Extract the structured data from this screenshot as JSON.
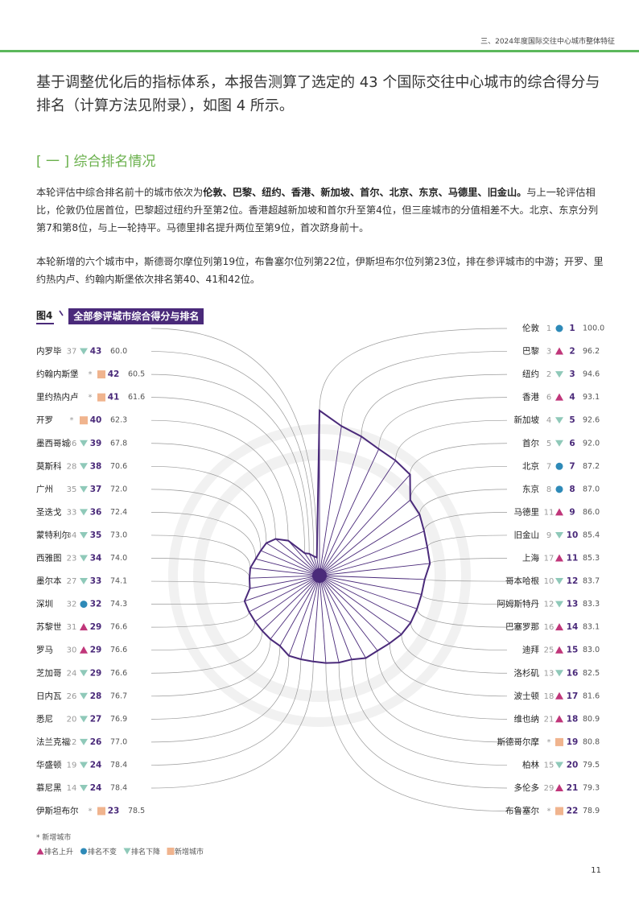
{
  "header": {
    "section_title": "三、2024年度国际交往中心城市整体特征"
  },
  "intro": {
    "text": "基于调整优化后的指标体系，本报告测算了选定的 43 个国际交往中心城市的综合得分与排名（计算方法见附录），如图 4 所示。"
  },
  "section": {
    "heading": "[ 一 ]  综合排名情况"
  },
  "paragraph1": {
    "before": "本轮评估中综合排名前十的城市依次为",
    "bold": "伦敦、巴黎、纽约、香港、新加坡、首尔、北京、东京、马德里、旧金山。",
    "after": "与上一轮评估相比，伦敦仍位居首位，巴黎超过纽约升至第2位。香港超越新加坡和首尔升至第4位，但三座城市的分值相差不大。北京、东京分列第7和第8位，与上一轮持平。马德里排名提升两位至第9位，首次跻身前十。"
  },
  "paragraph2": {
    "text": "本轮新增的六个城市中，斯德哥尔摩位列第19位，布鲁塞尔位列第22位，伊斯坦布尔位列第23位，排在参评城市的中游；开罗、里约热内卢、约翰内斯堡依次排名第40、41和42位。"
  },
  "figure": {
    "number": "图4",
    "title": "全部参评城市综合得分与排名"
  },
  "colors": {
    "accent": "#4a2a7a",
    "green": "#6ab04c",
    "up": "#c0367a",
    "same": "#2e8ab8",
    "down": "#8fc9b9",
    "new": "#f0b48e",
    "ring": "#f1f1f1"
  },
  "chart_data": {
    "type": "radial",
    "ylim": [
      55,
      100
    ],
    "cities": [
      {
        "name": "伦敦",
        "prev": "1",
        "status": "same",
        "rank": "1",
        "score": "100.0",
        "side": "right"
      },
      {
        "name": "巴黎",
        "prev": "3",
        "status": "up",
        "rank": "2",
        "score": "96.2",
        "side": "right"
      },
      {
        "name": "纽约",
        "prev": "2",
        "status": "down",
        "rank": "3",
        "score": "94.6",
        "side": "right"
      },
      {
        "name": "香港",
        "prev": "6",
        "status": "up",
        "rank": "4",
        "score": "93.1",
        "side": "right"
      },
      {
        "name": "新加坡",
        "prev": "4",
        "status": "down",
        "rank": "5",
        "score": "92.6",
        "side": "right"
      },
      {
        "name": "首尔",
        "prev": "5",
        "status": "down",
        "rank": "6",
        "score": "92.0",
        "side": "right"
      },
      {
        "name": "北京",
        "prev": "7",
        "status": "same",
        "rank": "7",
        "score": "87.2",
        "side": "right"
      },
      {
        "name": "东京",
        "prev": "8",
        "status": "same",
        "rank": "8",
        "score": "87.0",
        "side": "right"
      },
      {
        "name": "马德里",
        "prev": "11",
        "status": "up",
        "rank": "9",
        "score": "86.0",
        "side": "right"
      },
      {
        "name": "旧金山",
        "prev": "9",
        "status": "down",
        "rank": "10",
        "score": "85.4",
        "side": "right"
      },
      {
        "name": "上海",
        "prev": "17",
        "status": "up",
        "rank": "11",
        "score": "85.3",
        "side": "right"
      },
      {
        "name": "哥本哈根",
        "prev": "10",
        "status": "down",
        "rank": "12",
        "score": "83.7",
        "side": "right"
      },
      {
        "name": "阿姆斯特丹",
        "prev": "12",
        "status": "down",
        "rank": "13",
        "score": "83.3",
        "side": "right"
      },
      {
        "name": "巴塞罗那",
        "prev": "16",
        "status": "up",
        "rank": "14",
        "score": "83.1",
        "side": "right"
      },
      {
        "name": "迪拜",
        "prev": "25",
        "status": "up",
        "rank": "15",
        "score": "83.0",
        "side": "right"
      },
      {
        "name": "洛杉矶",
        "prev": "13",
        "status": "down",
        "rank": "16",
        "score": "82.5",
        "side": "right"
      },
      {
        "name": "波士顿",
        "prev": "18",
        "status": "up",
        "rank": "17",
        "score": "81.6",
        "side": "right"
      },
      {
        "name": "维也纳",
        "prev": "21",
        "status": "up",
        "rank": "18",
        "score": "80.9",
        "side": "right"
      },
      {
        "name": "斯德哥尔摩",
        "prev": "*",
        "status": "new",
        "rank": "19",
        "score": "80.8",
        "side": "right"
      },
      {
        "name": "柏林",
        "prev": "15",
        "status": "down",
        "rank": "20",
        "score": "79.5",
        "side": "right"
      },
      {
        "name": "多伦多",
        "prev": "29",
        "status": "up",
        "rank": "21",
        "score": "79.3",
        "side": "right"
      },
      {
        "name": "布鲁塞尔",
        "prev": "*",
        "status": "new",
        "rank": "22",
        "score": "78.9",
        "side": "right"
      },
      {
        "name": "伊斯坦布尔",
        "prev": "*",
        "status": "new",
        "rank": "23",
        "score": "78.5",
        "side": "left"
      },
      {
        "name": "慕尼黑",
        "prev": "14",
        "status": "down",
        "rank": "24",
        "score": "78.4",
        "side": "left"
      },
      {
        "name": "华盛顿",
        "prev": "19",
        "status": "down",
        "rank": "24",
        "score": "78.4",
        "side": "left"
      },
      {
        "name": "法兰克福",
        "prev": "22",
        "status": "down",
        "rank": "26",
        "score": "77.0",
        "side": "left"
      },
      {
        "name": "悉尼",
        "prev": "20",
        "status": "down",
        "rank": "27",
        "score": "76.9",
        "side": "left"
      },
      {
        "name": "日内瓦",
        "prev": "26",
        "status": "down",
        "rank": "28",
        "score": "76.7",
        "side": "left"
      },
      {
        "name": "芝加哥",
        "prev": "24",
        "status": "down",
        "rank": "29",
        "score": "76.6",
        "side": "left"
      },
      {
        "name": "罗马",
        "prev": "30",
        "status": "up",
        "rank": "29",
        "score": "76.6",
        "side": "left"
      },
      {
        "name": "苏黎世",
        "prev": "31",
        "status": "up",
        "rank": "29",
        "score": "76.6",
        "side": "left"
      },
      {
        "name": "深圳",
        "prev": "32",
        "status": "same",
        "rank": "32",
        "score": "74.3",
        "side": "left"
      },
      {
        "name": "墨尔本",
        "prev": "27",
        "status": "down",
        "rank": "33",
        "score": "74.1",
        "side": "left"
      },
      {
        "name": "西雅图",
        "prev": "23",
        "status": "down",
        "rank": "34",
        "score": "74.0",
        "side": "left"
      },
      {
        "name": "蒙特利尔",
        "prev": "34",
        "status": "down",
        "rank": "35",
        "score": "73.0",
        "side": "left"
      },
      {
        "name": "圣迭戈",
        "prev": "33",
        "status": "down",
        "rank": "36",
        "score": "72.4",
        "side": "left"
      },
      {
        "name": "广州",
        "prev": "35",
        "status": "down",
        "rank": "37",
        "score": "72.0",
        "side": "left"
      },
      {
        "name": "莫斯科",
        "prev": "28",
        "status": "down",
        "rank": "38",
        "score": "70.6",
        "side": "left"
      },
      {
        "name": "墨西哥城",
        "prev": "36",
        "status": "down",
        "rank": "39",
        "score": "67.8",
        "side": "left"
      },
      {
        "name": "开罗",
        "prev": "*",
        "status": "new",
        "rank": "40",
        "score": "62.3",
        "side": "left"
      },
      {
        "name": "里约热内卢",
        "prev": "*",
        "status": "new",
        "rank": "41",
        "score": "61.6",
        "side": "left"
      },
      {
        "name": "约翰内斯堡",
        "prev": "*",
        "status": "new",
        "rank": "42",
        "score": "60.5",
        "side": "left"
      },
      {
        "name": "内罗毕",
        "prev": "37",
        "status": "down",
        "rank": "43",
        "score": "60.0",
        "side": "left"
      }
    ]
  },
  "legend": {
    "note": "* 新增城市",
    "up": "排名上升",
    "same": "排名不变",
    "down": "排名下降",
    "new": "新增城市"
  },
  "page": {
    "number": "11"
  }
}
